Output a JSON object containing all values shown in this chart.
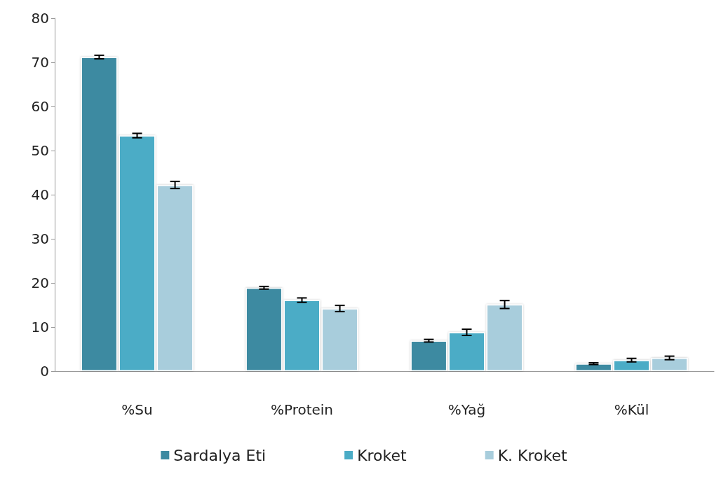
{
  "chart_data": {
    "type": "bar",
    "categories": [
      "%Su",
      "%Protein",
      "%Yağ",
      "%Kül"
    ],
    "series": [
      {
        "name": "Sardalya Eti",
        "color": "#3d8aa1",
        "values": [
          71.2,
          18.9,
          6.9,
          1.7
        ],
        "errors": [
          0.4,
          0.3,
          0.3,
          0.2
        ]
      },
      {
        "name": "Kroket",
        "color": "#4bacc6",
        "values": [
          53.4,
          16.1,
          8.8,
          2.5
        ],
        "errors": [
          0.5,
          0.5,
          0.7,
          0.4
        ]
      },
      {
        "name": "K. Kroket",
        "color": "#a8cddc",
        "values": [
          42.2,
          14.2,
          15.1,
          3.0
        ],
        "errors": [
          0.8,
          0.7,
          0.9,
          0.4
        ]
      }
    ],
    "ylim": [
      0,
      80
    ],
    "yticks": [
      0,
      10,
      20,
      30,
      40,
      50,
      60,
      70,
      80
    ],
    "grid": false,
    "legend": "bottom"
  }
}
